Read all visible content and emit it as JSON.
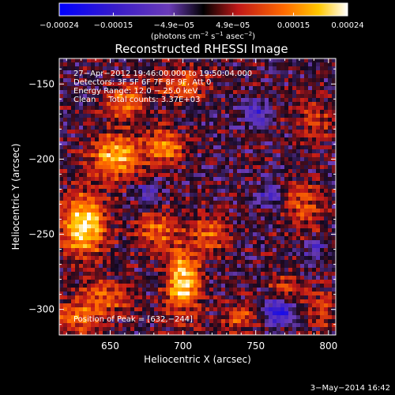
{
  "chart_data": {
    "type": "heatmap",
    "title": "Reconstructed RHESSI Image",
    "xlabel": "Heliocentric X (arcsec)",
    "ylabel": "Heliocentric Y (arcsec)",
    "xlim": [
      615,
      805
    ],
    "ylim": [
      -317,
      -133
    ],
    "x_ticks": [
      650,
      700,
      750,
      800
    ],
    "y_ticks": [
      -150,
      -200,
      -250,
      -300
    ],
    "x_tick_labels": [
      "650",
      "700",
      "750",
      "800"
    ],
    "y_tick_labels": [
      "−150",
      "−200",
      "−250",
      "−300"
    ],
    "colorbar": {
      "range": [
        -0.00024,
        0.00024
      ],
      "tick_values": [
        -0.00024,
        -0.00015,
        -4.9e-05,
        4.9e-05,
        0.00015,
        0.00024
      ],
      "tick_labels": [
        "−0.00024",
        "−0.00015",
        "−4.9e−05",
        "4.9e−05",
        "0.00015",
        "0.00024"
      ],
      "units_main": "(photons cm",
      "units_sup1": "−2",
      "units_mid1": " s",
      "units_sup2": "−1",
      "units_mid2": " asec",
      "units_sup3": "−2",
      "units_end": ")"
    },
    "annotations": {
      "line1": "27−Apr−2012 19:46:00.000 to 19:50:04.000",
      "line2": "Detectors: 3F 5F 6F 7F 8F 9F, Att 0",
      "line3": "Energy Range: 12.0 − 25.0 keV",
      "line4": "Clean     Total counts: 3.37E+03",
      "peak": "Position of Peak = [632,−244]"
    },
    "peak_position": [
      632,
      -244
    ],
    "source_blobs": [
      {
        "x": 632,
        "y": -244,
        "sx": 10,
        "sy": 14,
        "amp": 0.00024
      },
      {
        "x": 700,
        "y": -284,
        "sx": 8,
        "sy": 16,
        "amp": 0.00023
      },
      {
        "x": 654,
        "y": -198,
        "sx": 12,
        "sy": 10,
        "amp": 0.00019
      },
      {
        "x": 688,
        "y": -192,
        "sx": 9,
        "sy": 8,
        "amp": 0.00016
      },
      {
        "x": 660,
        "y": -162,
        "sx": 10,
        "sy": 8,
        "amp": 0.00013
      },
      {
        "x": 700,
        "y": -150,
        "sx": 12,
        "sy": 7,
        "amp": 0.00012
      },
      {
        "x": 682,
        "y": -248,
        "sx": 10,
        "sy": 8,
        "amp": 0.00012
      },
      {
        "x": 718,
        "y": -250,
        "sx": 9,
        "sy": 9,
        "amp": 0.00011
      },
      {
        "x": 782,
        "y": -232,
        "sx": 10,
        "sy": 12,
        "amp": 9e-05
      },
      {
        "x": 790,
        "y": -175,
        "sx": 10,
        "sy": 10,
        "amp": 8e-05
      },
      {
        "x": 648,
        "y": -292,
        "sx": 12,
        "sy": 8,
        "amp": 0.00011
      },
      {
        "x": 628,
        "y": -305,
        "sx": 10,
        "sy": 8,
        "amp": 0.00013
      },
      {
        "x": 738,
        "y": -305,
        "sx": 9,
        "sy": 7,
        "amp": 0.0001
      },
      {
        "x": 770,
        "y": -288,
        "sx": 8,
        "sy": 8,
        "amp": 9e-05
      },
      {
        "x": 795,
        "y": -300,
        "sx": 8,
        "sy": 10,
        "amp": 8e-05
      },
      {
        "x": 766,
        "y": -301,
        "sx": 7,
        "sy": 6,
        "amp": -0.0002
      },
      {
        "x": 750,
        "y": -170,
        "sx": 6,
        "sy": 6,
        "amp": -0.00012
      },
      {
        "x": 760,
        "y": -225,
        "sx": 6,
        "sy": 6,
        "amp": -0.0001
      },
      {
        "x": 675,
        "y": -222,
        "sx": 5,
        "sy": 5,
        "amp": -8e-05
      },
      {
        "x": 790,
        "y": -260,
        "sx": 5,
        "sy": 5,
        "amp": -9e-05
      },
      {
        "x": 700,
        "y": -300,
        "sx": 5,
        "sy": 5,
        "amp": -6e-05
      }
    ]
  },
  "footer": {
    "date": "3−May−2014 16:42"
  }
}
